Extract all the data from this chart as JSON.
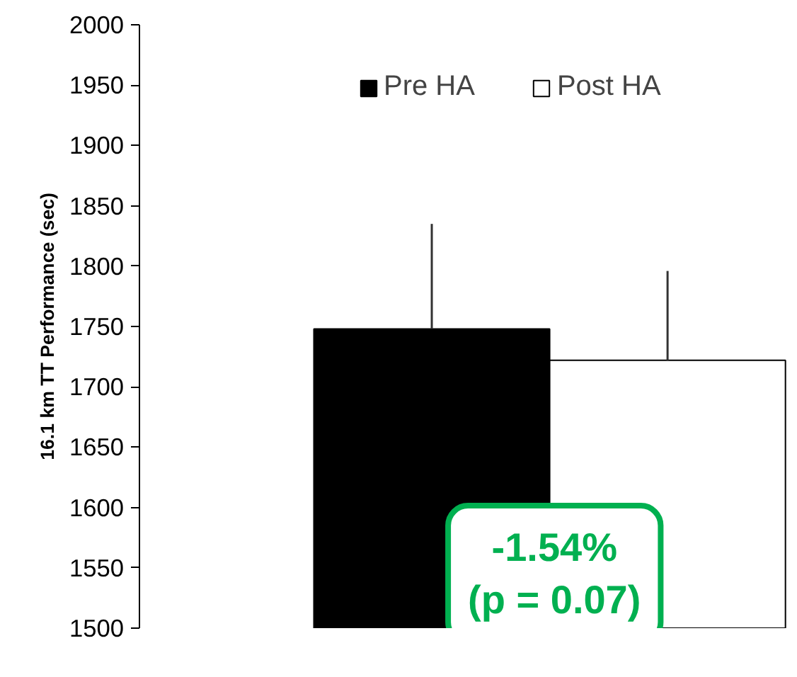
{
  "chart_data": {
    "type": "bar",
    "ylabel": "16.1 km TT Performance (sec)",
    "categories": [
      null
    ],
    "series": [
      {
        "name": "Pre HA",
        "color": "#000000",
        "values": [
          1748
        ],
        "errors": [
          [
            1748,
            1835
          ]
        ]
      },
      {
        "name": "Post HA",
        "color": "#ffffff",
        "values": [
          1722
        ],
        "errors": [
          [
            1722,
            1796
          ]
        ]
      }
    ],
    "ylim": [
      1500,
      2000
    ],
    "yticks": [
      1500,
      1550,
      1600,
      1650,
      1700,
      1750,
      1800,
      1850,
      1900,
      1950,
      2000
    ],
    "grid": false,
    "legend": "top",
    "annotations": [
      "-1.54%\n(p = 0.07)"
    ]
  }
}
